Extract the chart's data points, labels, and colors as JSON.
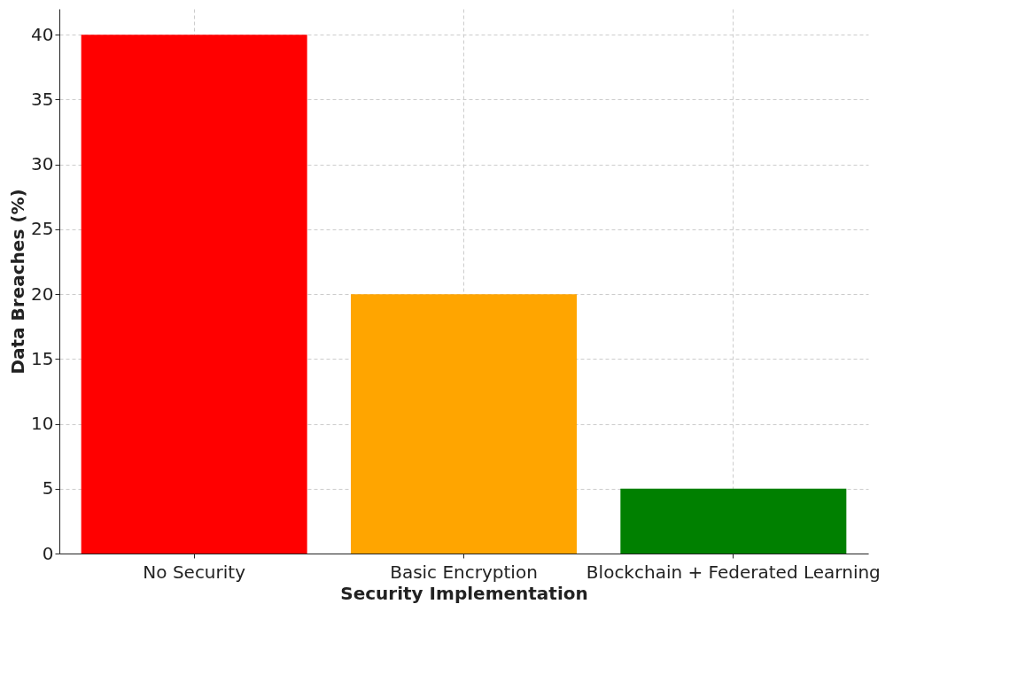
{
  "chart_data": {
    "type": "bar",
    "xlabel": "Security Implementation",
    "ylabel": "Data Breaches (%)",
    "categories": [
      "No Security",
      "Basic Encryption",
      "Blockchain + Federated Learning"
    ],
    "values": [
      40,
      20,
      5
    ],
    "colors": [
      "#ff0000",
      "#ffa500",
      "#008000"
    ],
    "ylim": [
      0,
      42
    ],
    "yticks": [
      0,
      5,
      10,
      15,
      20,
      25,
      30,
      35,
      40
    ],
    "grid": true
  }
}
